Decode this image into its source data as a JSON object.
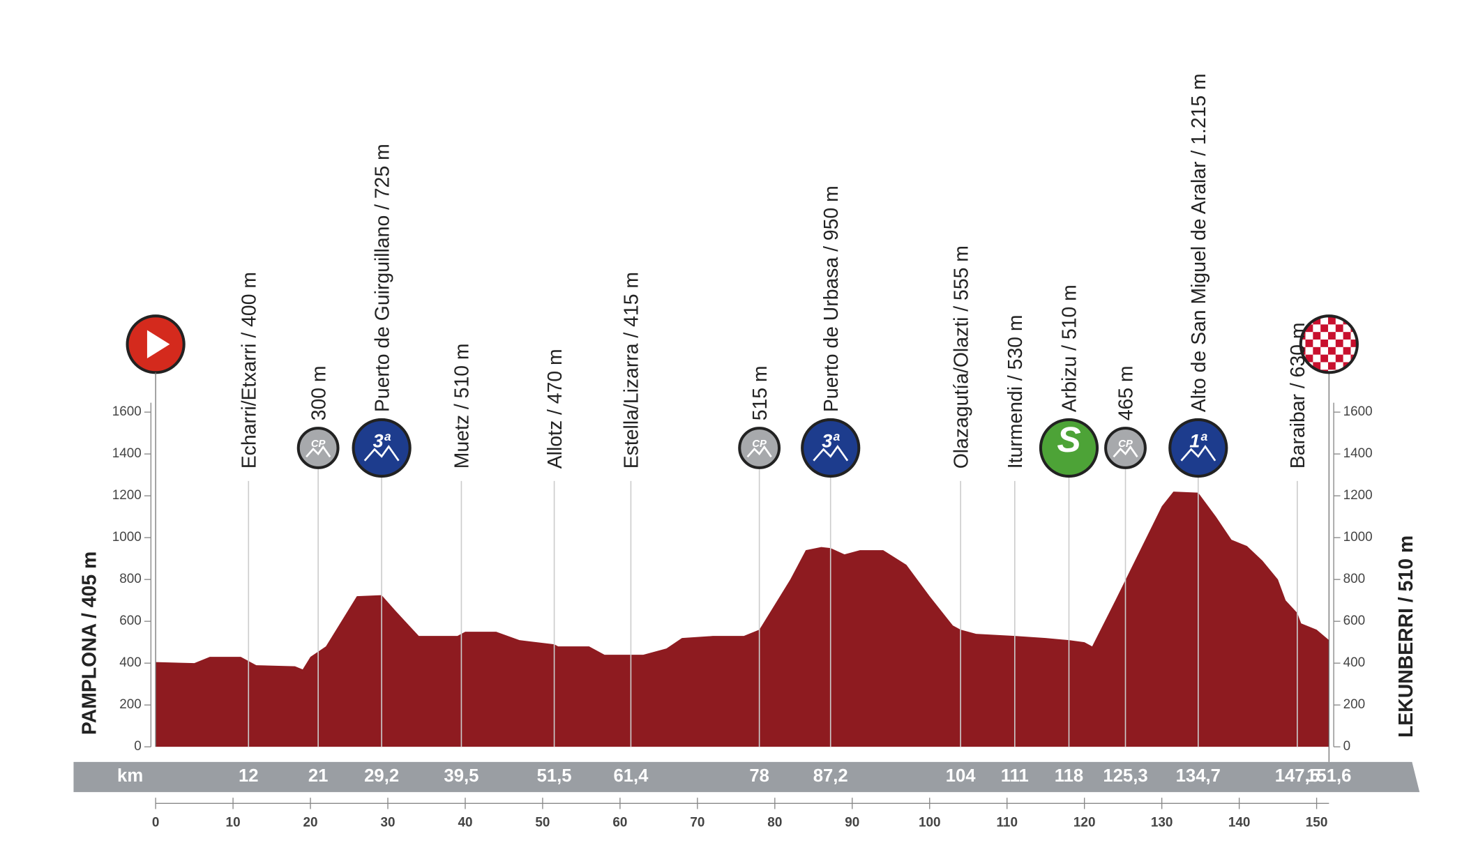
{
  "chart_data": {
    "type": "area",
    "x": [
      0,
      5,
      7,
      11,
      13,
      18,
      19,
      20,
      22,
      26,
      29.2,
      31,
      34,
      39,
      40,
      44,
      47,
      51.5,
      52,
      56,
      58,
      61.4,
      63,
      66,
      68,
      72,
      76,
      78,
      82,
      84,
      86,
      87.2,
      89,
      91,
      94,
      97,
      100,
      103,
      104,
      106,
      111,
      115,
      118,
      120,
      121,
      124,
      128,
      130,
      131.5,
      134.7,
      137,
      139,
      141,
      143,
      145,
      146,
      147.5,
      148,
      150,
      151.6
    ],
    "values": [
      405,
      400,
      430,
      430,
      390,
      385,
      370,
      430,
      480,
      720,
      725,
      650,
      530,
      530,
      550,
      550,
      510,
      490,
      480,
      480,
      440,
      440,
      440,
      470,
      520,
      530,
      530,
      560,
      800,
      940,
      955,
      950,
      920,
      940,
      940,
      870,
      720,
      580,
      560,
      540,
      530,
      520,
      510,
      500,
      480,
      700,
      1000,
      1150,
      1220,
      1215,
      1100,
      990,
      960,
      890,
      800,
      700,
      640,
      590,
      560,
      510
    ],
    "color": "#8e1b20",
    "xlim": [
      0,
      151.6
    ],
    "xticks": [
      0,
      10,
      20,
      30,
      40,
      50,
      60,
      70,
      80,
      90,
      100,
      110,
      120,
      130,
      140,
      150
    ],
    "ylim": [
      0,
      1600
    ],
    "yticks": [
      0,
      200,
      400,
      600,
      800,
      1000,
      1200,
      1400,
      1600
    ],
    "x_unit": "km",
    "start": "PAMPLONA / 405 m",
    "finish": "LEKUNBERRI / 510 m",
    "waypoints": [
      {
        "km": {
          "value": 12,
          "label": "12"
        },
        "name": "Echarri/Etxarri / 400 m"
      },
      {
        "km": {
          "value": 21,
          "label": "21"
        },
        "name": "300 m",
        "badge": "CP"
      },
      {
        "km": {
          "value": 29.2,
          "label": "29,2"
        },
        "name": "Puerto de Guirguillano / 725 m",
        "badge": "3ª"
      },
      {
        "km": {
          "value": 39.5,
          "label": "39,5"
        },
        "name": "Muetz / 510 m"
      },
      {
        "km": {
          "value": 51.5,
          "label": "51,5"
        },
        "name": "Allotz / 470 m"
      },
      {
        "km": {
          "value": 61.4,
          "label": "61,4"
        },
        "name": "Estella/Lizarra / 415 m"
      },
      {
        "km": {
          "value": 78,
          "label": "78"
        },
        "name": "515 m",
        "badge": "CP"
      },
      {
        "km": {
          "value": 87.2,
          "label": "87,2"
        },
        "name": "Puerto de Urbasa / 950 m",
        "badge": "3ª"
      },
      {
        "km": {
          "value": 104,
          "label": "104"
        },
        "name": "Olazagutía/Olazti / 555 m"
      },
      {
        "km": {
          "value": 111,
          "label": "111"
        },
        "name": "Iturmendi / 530 m"
      },
      {
        "km": {
          "value": 118,
          "label": "118"
        },
        "name": "Arbizu / 510 m",
        "badge": "S"
      },
      {
        "km": {
          "value": 125.3,
          "label": "125,3"
        },
        "name": "465 m",
        "badge": "CP"
      },
      {
        "km": {
          "value": 134.7,
          "label": "134,7"
        },
        "name": "Alto de San Miguel de Aralar / 1.215 m",
        "badge": "1ª"
      },
      {
        "km": {
          "value": 147.5,
          "label": "147,5"
        },
        "name": "Baraibar / 630 m"
      },
      {
        "km": {
          "value": 151.6,
          "label": "151,6"
        }
      }
    ]
  }
}
